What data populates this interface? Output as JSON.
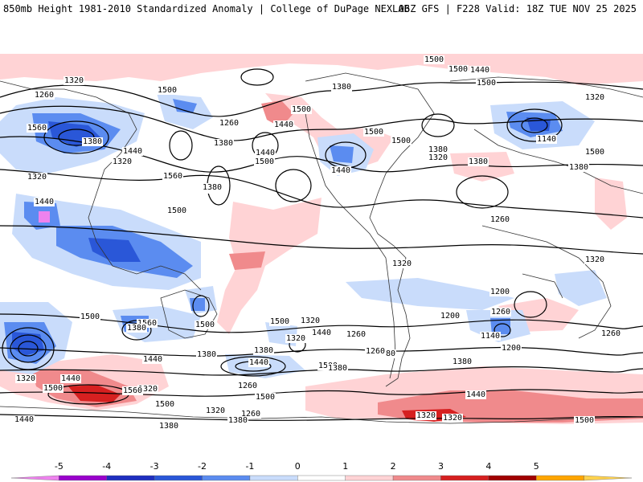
{
  "header": {
    "left": "850mb Height 1981-2010 Standardized Anomaly | College of DuPage NEXLAB",
    "right": "06Z GFS | F228 Valid: 18Z TUE NOV 25 2025"
  },
  "contour_labels": [
    "1320",
    "1260",
    "1500",
    "1560",
    "1320",
    "1380",
    "1440",
    "1320",
    "1260",
    "1380",
    "1440",
    "1500",
    "1560",
    "1500",
    "1440",
    "1380",
    "1500",
    "1440",
    "1500",
    "1500",
    "1380",
    "1320",
    "1440",
    "1500",
    "1500",
    "1500",
    "1380",
    "1140",
    "1320",
    "1500",
    "1380",
    "1260",
    "1200",
    "1320",
    "1260",
    "1200",
    "1260",
    "1140",
    "1200",
    "1320",
    "1260",
    "1380",
    "1440",
    "1320",
    "1500",
    "1380",
    "1500",
    "1440",
    "1320",
    "1380",
    "1260",
    "1260",
    "1320",
    "1380",
    "1380",
    "1500",
    "1560",
    "1380",
    "1440",
    "1500",
    "1500",
    "1440",
    "1380",
    "1320",
    "1440",
    "1500",
    "1440",
    "1380",
    "1320",
    "1560",
    "1500",
    "1500",
    "1500",
    "1440",
    "1320",
    "1380",
    "1260",
    "1320"
  ],
  "legend": {
    "ticks": [
      "-5",
      "-4",
      "-3",
      "-2",
      "-1",
      "0",
      "1",
      "2",
      "3",
      "4",
      "5"
    ],
    "colors": [
      "#ee82ee",
      "#9900cc",
      "#1f2fbf",
      "#2a57d8",
      "#5b8cf0",
      "#c9dcfb",
      "#ffffff",
      "#ffd3d5",
      "#f08a8c",
      "#d62020",
      "#a00000",
      "#ffa500",
      "#ffd24d"
    ]
  },
  "colors": {
    "neg1": "#c9dcfb",
    "neg2": "#5b8cf0",
    "neg3": "#2a57d8",
    "neg5": "#ee82ee",
    "pos1": "#ffd3d5",
    "pos2": "#f08a8c",
    "pos3": "#d62020",
    "pos4": "#a00000"
  }
}
